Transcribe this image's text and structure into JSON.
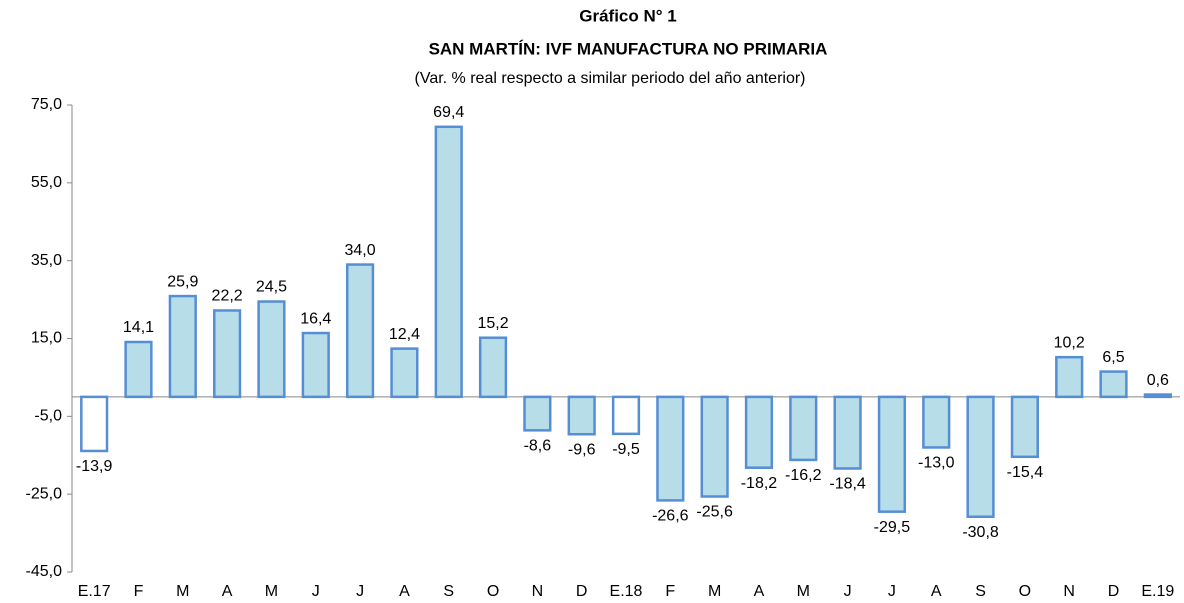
{
  "chart_data": {
    "type": "bar",
    "title": "Gráfico N° 1",
    "subtitle": "SAN MARTÍN: IVF MANUFACTURA NO PRIMARIA",
    "note": "(Var. % real respecto a similar periodo del año anterior)",
    "categories": [
      "E.17",
      "F",
      "M",
      "A",
      "M",
      "J",
      "J",
      "A",
      "S",
      "O",
      "N",
      "D",
      "E.18",
      "F",
      "M",
      "A",
      "M",
      "J",
      "J",
      "A",
      "S",
      "O",
      "N",
      "D",
      "E.19"
    ],
    "values": [
      -13.9,
      14.1,
      25.9,
      22.2,
      24.5,
      16.4,
      34.0,
      12.4,
      69.4,
      15.2,
      -8.6,
      -9.6,
      -9.5,
      -26.6,
      -25.6,
      -18.2,
      -16.2,
      -18.4,
      -29.5,
      -13.0,
      -30.8,
      -15.4,
      10.2,
      6.5,
      0.6
    ],
    "value_labels": [
      "-13,9",
      "14,1",
      "25,9",
      "22,2",
      "24,5",
      "16,4",
      "34,0",
      "12,4",
      "69,4",
      "15,2",
      "-8,6",
      "-9,6",
      "-9,5",
      "-26,6",
      "-25,6",
      "-18,2",
      "-16,2",
      "-18,4",
      "-29,5",
      "-13,0",
      "-30,8",
      "-15,4",
      "10,2",
      "6,5",
      "0,6"
    ],
    "colors": [
      "#ffffff",
      "#b7dee8",
      "#b7dee8",
      "#b7dee8",
      "#b7dee8",
      "#b7dee8",
      "#b7dee8",
      "#b7dee8",
      "#b7dee8",
      "#b7dee8",
      "#b7dee8",
      "#b7dee8",
      "#ffffff",
      "#b7dee8",
      "#b7dee8",
      "#b7dee8",
      "#b7dee8",
      "#b7dee8",
      "#b7dee8",
      "#b7dee8",
      "#b7dee8",
      "#b7dee8",
      "#b7dee8",
      "#b7dee8",
      "#b7dee8"
    ],
    "border_color": "#558ed5",
    "ylim": [
      -45,
      75
    ],
    "yticks": [
      {
        "value": -45,
        "label": "-45,0"
      },
      {
        "value": -25,
        "label": "-25,0"
      },
      {
        "value": -5,
        "label": "-5,0"
      },
      {
        "value": 15,
        "label": "15,0"
      },
      {
        "value": 35,
        "label": "35,0"
      },
      {
        "value": 55,
        "label": "55,0"
      },
      {
        "value": 75,
        "label": "75,0"
      }
    ],
    "grid": false
  }
}
